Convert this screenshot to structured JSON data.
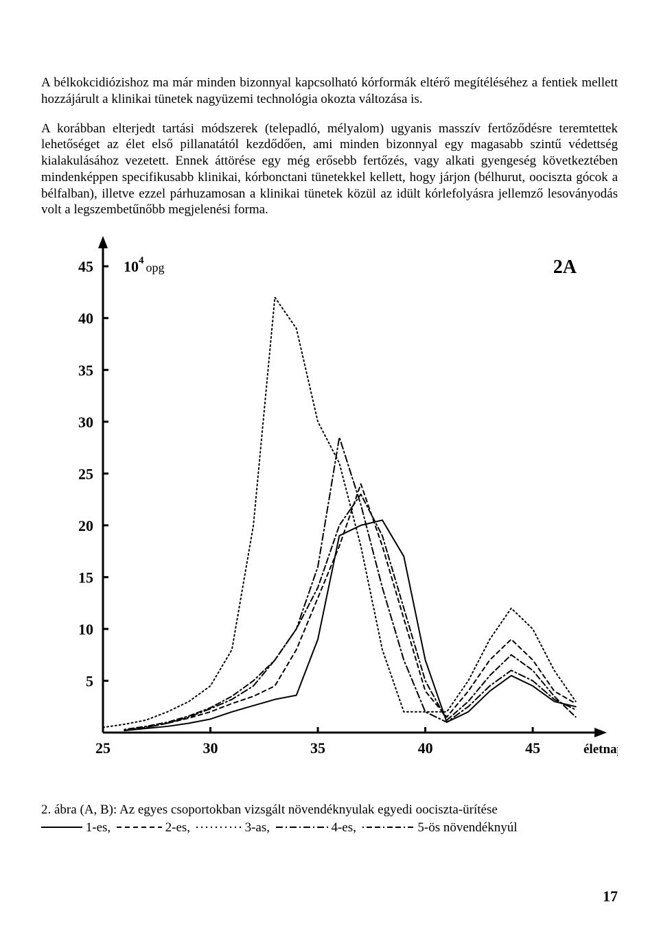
{
  "paragraphs": {
    "p1": "A bélkokcidiózishoz ma már minden bizonnyal kapcsolható kórformák eltérő megítéléséhez a fentiek mellett hozzájárult a klinikai tünetek nagyüzemi technológia okozta változása is.",
    "p2": "A korábban elterjedt tartási módszerek (telepadló, mélyalom) ugyanis masszív fertőződésre teremtettek lehetőséget az élet első pillanatától kezdődően, ami minden bizonnyal egy magasabb szintű védettség kialakulásához vezetett. Ennek áttörése egy még erősebb fertőzés, vagy alkati gyengeség következtében mindenképpen specifikusabb klinikai, kórbonctani tünetekkel kellett, hogy járjon (bélhurut, oociszta gócok a bélfalban), illetve ezzel párhuzamosan a klinikai tünetek közül az idült kórlefolyásra jellemző lesoványodás volt a legszembetűnőbb megjelenési forma."
  },
  "chart": {
    "type": "line",
    "panel_label": "2A",
    "panel_label_fontsize": 28,
    "y_unit_prefix": "10",
    "y_unit_exp": "4",
    "y_unit_suffix": "opg",
    "x_axis_label": "életnap",
    "axis_fontweight": "bold",
    "axis_linewidth": 3,
    "x_ticks": [
      25,
      30,
      35,
      40,
      45
    ],
    "y_ticks": [
      5,
      10,
      15,
      20,
      25,
      30,
      35,
      40,
      45
    ],
    "xlim": [
      25,
      48
    ],
    "ylim": [
      0,
      47
    ],
    "tick_fontsize": 22,
    "line_color": "#000000",
    "line_width": 2,
    "background_color": "#ffffff",
    "series": [
      {
        "id": "s1",
        "dash": "none",
        "points": [
          [
            26,
            0.2
          ],
          [
            27,
            0.4
          ],
          [
            28,
            0.6
          ],
          [
            29,
            0.9
          ],
          [
            30,
            1.3
          ],
          [
            31,
            2.0
          ],
          [
            32,
            2.6
          ],
          [
            33,
            3.2
          ],
          [
            34,
            3.6
          ],
          [
            35,
            9
          ],
          [
            36,
            19
          ],
          [
            37,
            20
          ],
          [
            38,
            20.5
          ],
          [
            39,
            17
          ],
          [
            40,
            7
          ],
          [
            41,
            1
          ],
          [
            42,
            2
          ],
          [
            43,
            4
          ],
          [
            44,
            5.5
          ],
          [
            45,
            4.5
          ],
          [
            46,
            3
          ],
          [
            47,
            2.5
          ]
        ]
      },
      {
        "id": "s2",
        "dash": "6,5",
        "points": [
          [
            26,
            0.2
          ],
          [
            27,
            0.5
          ],
          [
            28,
            0.9
          ],
          [
            29,
            1.4
          ],
          [
            30,
            2.0
          ],
          [
            31,
            2.8
          ],
          [
            32,
            3.5
          ],
          [
            33,
            4.5
          ],
          [
            34,
            8
          ],
          [
            35,
            13
          ],
          [
            36,
            18
          ],
          [
            37,
            24
          ],
          [
            38,
            18
          ],
          [
            39,
            11
          ],
          [
            40,
            4
          ],
          [
            41,
            1.5
          ],
          [
            42,
            4
          ],
          [
            43,
            7
          ],
          [
            44,
            9
          ],
          [
            45,
            7
          ],
          [
            46,
            4
          ],
          [
            47,
            2.8
          ]
        ]
      },
      {
        "id": "s3",
        "dash": "2,4",
        "points": [
          [
            25,
            0.5
          ],
          [
            26,
            0.8
          ],
          [
            27,
            1.2
          ],
          [
            28,
            2
          ],
          [
            29,
            3
          ],
          [
            30,
            4.5
          ],
          [
            31,
            8
          ],
          [
            32,
            20
          ],
          [
            33,
            42
          ],
          [
            34,
            39
          ],
          [
            35,
            30
          ],
          [
            36,
            26
          ],
          [
            37,
            18
          ],
          [
            38,
            8
          ],
          [
            39,
            2
          ],
          [
            40,
            2
          ],
          [
            41,
            2
          ],
          [
            42,
            5
          ],
          [
            43,
            9
          ],
          [
            44,
            12
          ],
          [
            45,
            10
          ],
          [
            46,
            6
          ],
          [
            47,
            3
          ]
        ]
      },
      {
        "id": "s4",
        "dash": "10,4,2,4",
        "points": [
          [
            26,
            0.2
          ],
          [
            27,
            0.5
          ],
          [
            28,
            0.9
          ],
          [
            29,
            1.5
          ],
          [
            30,
            2.3
          ],
          [
            31,
            3.2
          ],
          [
            32,
            4.5
          ],
          [
            33,
            7
          ],
          [
            34,
            10
          ],
          [
            35,
            16
          ],
          [
            36,
            28.5
          ],
          [
            37,
            22
          ],
          [
            38,
            14
          ],
          [
            39,
            7
          ],
          [
            40,
            2
          ],
          [
            41,
            1
          ],
          [
            42,
            2.5
          ],
          [
            43,
            4.5
          ],
          [
            44,
            6
          ],
          [
            45,
            5
          ],
          [
            46,
            3.2
          ],
          [
            47,
            2.2
          ]
        ]
      },
      {
        "id": "s5",
        "dash": "2,4,8,4,8,4",
        "points": [
          [
            26,
            0.3
          ],
          [
            27,
            0.6
          ],
          [
            28,
            1.0
          ],
          [
            29,
            1.6
          ],
          [
            30,
            2.4
          ],
          [
            31,
            3.5
          ],
          [
            32,
            5
          ],
          [
            33,
            7
          ],
          [
            34,
            10
          ],
          [
            35,
            14
          ],
          [
            36,
            20
          ],
          [
            37,
            23
          ],
          [
            38,
            19
          ],
          [
            39,
            12
          ],
          [
            40,
            5
          ],
          [
            41,
            1.2
          ],
          [
            42,
            3
          ],
          [
            43,
            5.5
          ],
          [
            44,
            7.5
          ],
          [
            45,
            6
          ],
          [
            46,
            3.5
          ],
          [
            47,
            1.5
          ]
        ]
      }
    ]
  },
  "caption": {
    "line1": "2. ábra (A, B): Az egyes csoportokban vizsgált növendéknyulak egyedi oociszta-ürítése",
    "legend1_label": "1-es,",
    "legend2_label": "2-es,",
    "legend3_label": "3-as,",
    "legend4_label": "4-es,",
    "legend5_label": "5-ös növendéknyúl"
  },
  "page_number": "17"
}
